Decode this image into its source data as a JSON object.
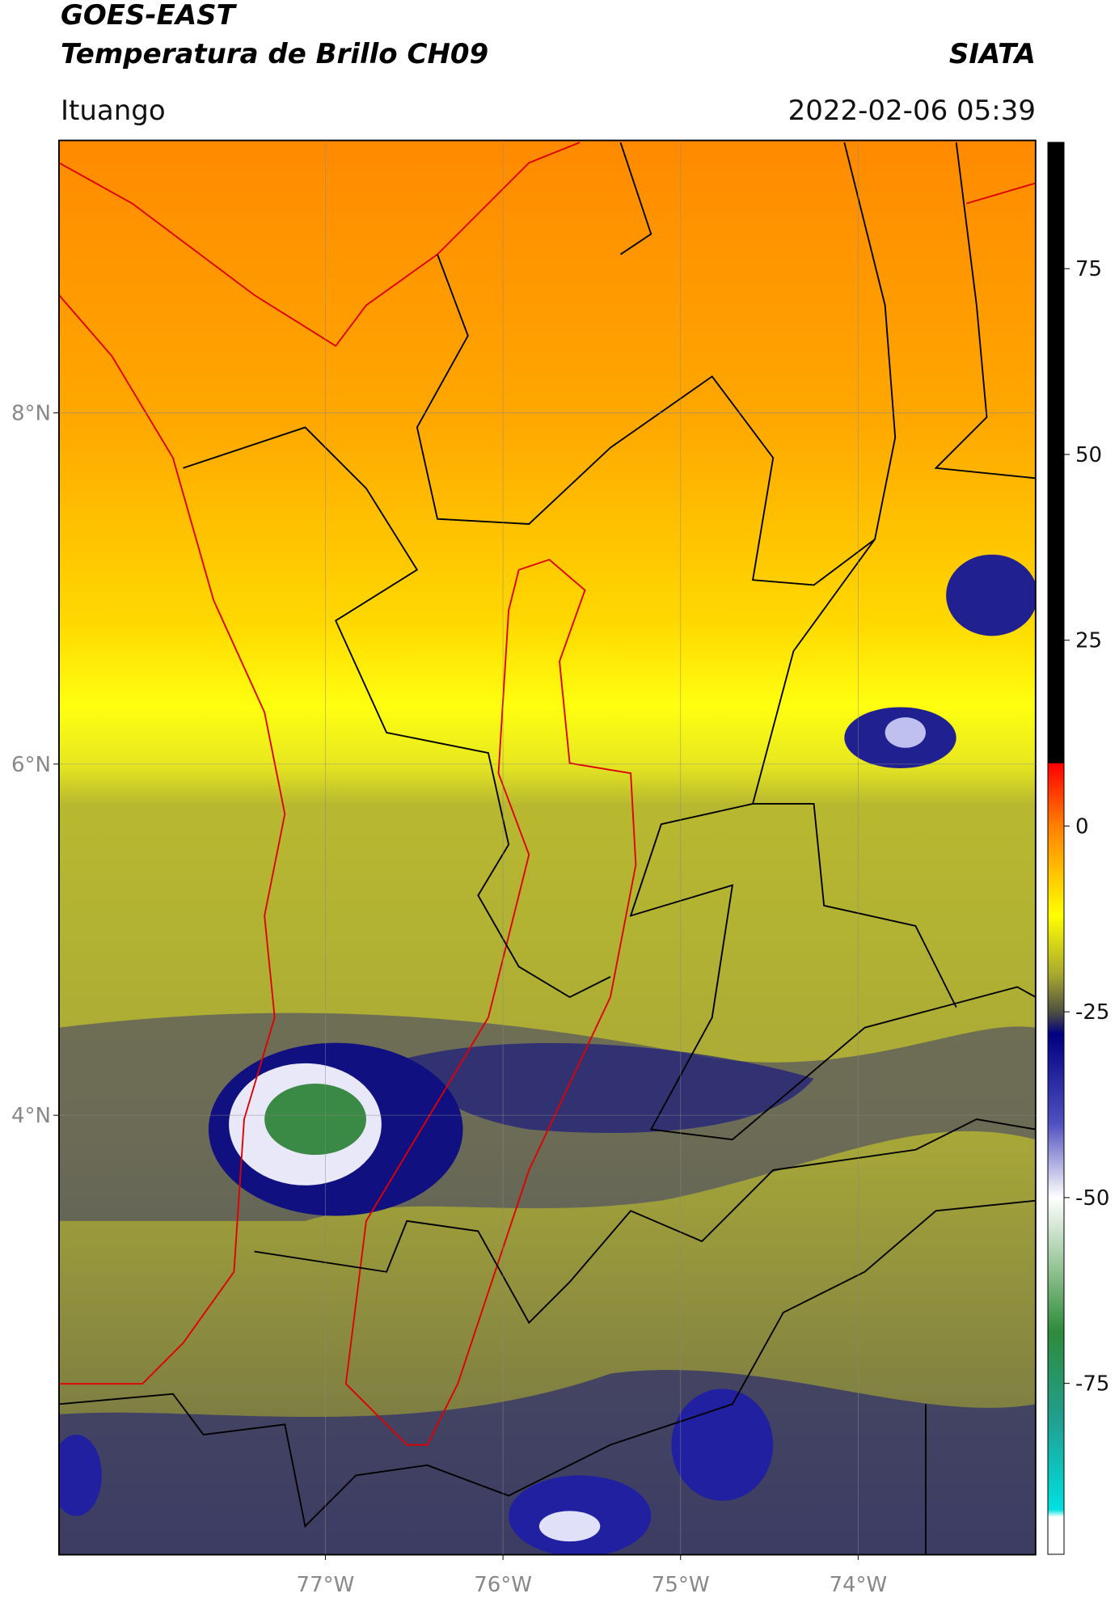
{
  "header": {
    "title": "GOES-EAST",
    "subtitle": "Temperatura de Brillo CH09",
    "brand": "SIATA",
    "region": "Ituango",
    "datetime": "2022-02-06 05:39"
  },
  "map": {
    "xlim": [
      -78.5,
      -73
    ],
    "ylim": [
      1.5,
      9.55
    ],
    "xticks": [
      {
        "value": -77,
        "label": "77°W"
      },
      {
        "value": -76,
        "label": "76°W"
      },
      {
        "value": -75,
        "label": "75°W"
      },
      {
        "value": -74,
        "label": "74°W"
      }
    ],
    "yticks": [
      {
        "value": 8,
        "label": "8°N"
      },
      {
        "value": 6,
        "label": "6°N"
      },
      {
        "value": 4,
        "label": "4°N"
      }
    ],
    "grid": true
  },
  "colorbar": {
    "lim": [
      -98,
      92
    ],
    "ticks": [
      75,
      50,
      25,
      0,
      -25,
      -50,
      -75
    ],
    "stops": [
      {
        "value": 92,
        "color": "#000000"
      },
      {
        "value": 8.5,
        "color": "#000000"
      },
      {
        "value": 8.4,
        "color": "#ff0000"
      },
      {
        "value": 0,
        "color": "#ff8000"
      },
      {
        "value": -12,
        "color": "#ffff00"
      },
      {
        "value": -20,
        "color": "#a8a830"
      },
      {
        "value": -25,
        "color": "#505040"
      },
      {
        "value": -28,
        "color": "#000080"
      },
      {
        "value": -40,
        "color": "#5050c0"
      },
      {
        "value": -50,
        "color": "#ffffff"
      },
      {
        "value": -60,
        "color": "#8fc08f"
      },
      {
        "value": -68,
        "color": "#2e8b3a"
      },
      {
        "value": -80,
        "color": "#20a090"
      },
      {
        "value": -92,
        "color": "#00e0e0"
      },
      {
        "value": -93,
        "color": "#ffffff"
      },
      {
        "value": -98,
        "color": "#ffffff"
      }
    ]
  }
}
